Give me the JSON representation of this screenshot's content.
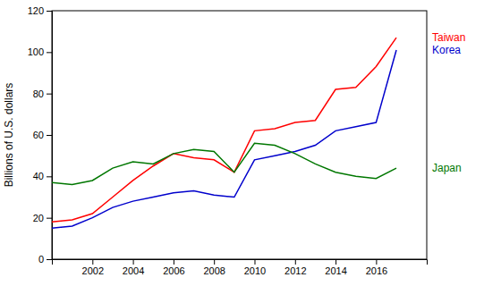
{
  "chart_data": {
    "type": "line",
    "y_label": "Billions of U.S. dollars",
    "x": [
      2000,
      2001,
      2002,
      2003,
      2004,
      2005,
      2006,
      2007,
      2008,
      2009,
      2010,
      2011,
      2012,
      2013,
      2014,
      2015,
      2016,
      2017
    ],
    "series": [
      {
        "name": "Taiwan",
        "color": "#ff0000",
        "values": [
          18,
          19,
          22,
          30,
          38,
          45,
          51,
          49,
          48,
          42,
          62,
          63,
          66,
          67,
          82,
          83,
          93,
          107
        ]
      },
      {
        "name": "Korea",
        "color": "#0000cc",
        "values": [
          15,
          16,
          20,
          25,
          28,
          30,
          32,
          33,
          31,
          30,
          48,
          50,
          52,
          55,
          62,
          64,
          66,
          101
        ]
      },
      {
        "name": "Japan",
        "color": "#007700",
        "values": [
          37,
          36,
          38,
          44,
          47,
          46,
          51,
          53,
          52,
          42,
          56,
          55,
          51,
          46,
          42,
          40,
          39,
          44
        ]
      }
    ],
    "xlim": [
      2000,
      2018.5
    ],
    "xticks": [
      2002,
      2004,
      2006,
      2008,
      2010,
      2012,
      2014,
      2016
    ],
    "ylim": [
      0,
      120
    ],
    "yticks": [
      0,
      20,
      40,
      60,
      80,
      100,
      120
    ],
    "grid": false
  }
}
